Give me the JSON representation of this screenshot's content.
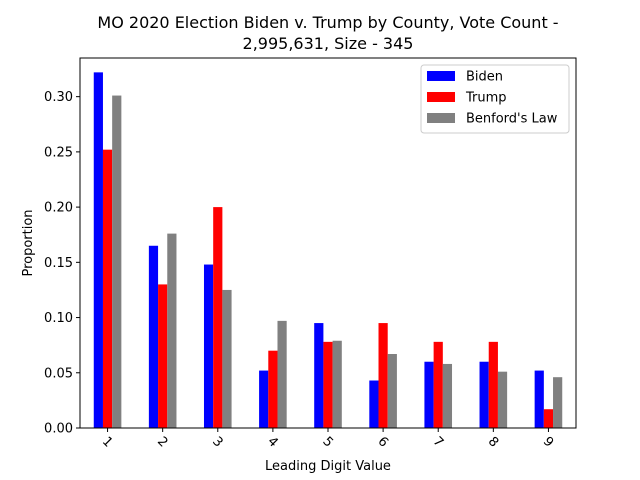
{
  "chart_data": {
    "type": "bar",
    "title_lines": [
      "MO 2020 Election Biden v. Trump by County, Vote Count -",
      "2,995,631, Size - 345"
    ],
    "xlabel": "Leading Digit Value",
    "ylabel": "Proportion",
    "categories": [
      "1",
      "2",
      "3",
      "4",
      "5",
      "6",
      "7",
      "8",
      "9"
    ],
    "ylim": [
      0,
      0.335
    ],
    "yticks": [
      "0.00",
      "0.05",
      "0.10",
      "0.15",
      "0.20",
      "0.25",
      "0.30"
    ],
    "grid": false,
    "legend_position": "upper right",
    "series": [
      {
        "name": "Biden",
        "color": "#0000ff",
        "values": [
          0.322,
          0.165,
          0.148,
          0.052,
          0.095,
          0.043,
          0.06,
          0.06,
          0.052
        ]
      },
      {
        "name": "Trump",
        "color": "#ff0000",
        "values": [
          0.252,
          0.13,
          0.2,
          0.07,
          0.078,
          0.095,
          0.078,
          0.078,
          0.017
        ]
      },
      {
        "name": "Benford's Law",
        "color": "#808080",
        "values": [
          0.301,
          0.176,
          0.125,
          0.097,
          0.079,
          0.067,
          0.058,
          0.051,
          0.046
        ]
      }
    ]
  }
}
